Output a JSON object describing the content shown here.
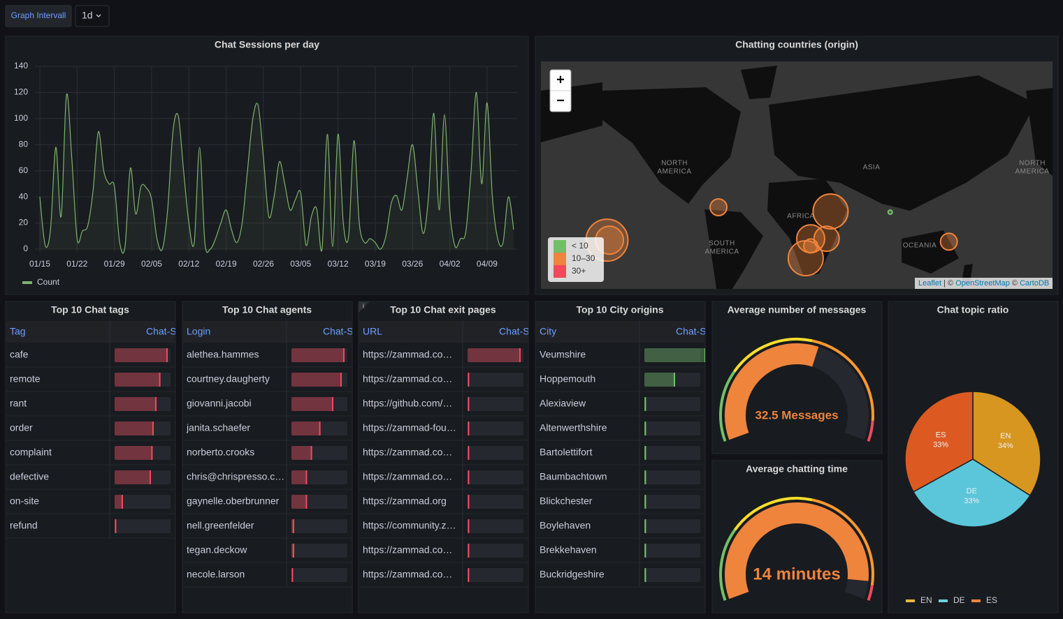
{
  "toolbar": {
    "label": "Graph Intervall",
    "interval": "1d"
  },
  "chart_data": [
    {
      "type": "line",
      "title": "Chat Sessions per day",
      "categories": [
        "01/15",
        null,
        null,
        null,
        null,
        null,
        null,
        "01/22",
        null,
        null,
        null,
        null,
        null,
        null,
        "01/29",
        null,
        null,
        null,
        null,
        null,
        null,
        "02/05",
        null,
        null,
        null,
        null,
        null,
        null,
        "02/12",
        null,
        null,
        null,
        null,
        null,
        null,
        "02/19",
        null,
        null,
        null,
        null,
        null,
        null,
        "02/26",
        null,
        null,
        null,
        null,
        null,
        null,
        "03/05",
        null,
        null,
        null,
        null,
        null,
        null,
        "03/12",
        null,
        null,
        null,
        null,
        null,
        null,
        "03/19",
        null,
        null,
        null,
        null,
        null,
        null,
        "03/26",
        null,
        null,
        null,
        null,
        null,
        null,
        "04/02",
        null,
        null,
        null,
        null,
        null,
        null,
        "04/09",
        null,
        null,
        null,
        null,
        null
      ],
      "series": [
        {
          "name": "Count",
          "color": "#7eb26d",
          "values": [
            40,
            3,
            15,
            78,
            25,
            118,
            70,
            8,
            14,
            18,
            45,
            90,
            60,
            50,
            48,
            5,
            2,
            62,
            27,
            48,
            47,
            38,
            8,
            0,
            30,
            90,
            102,
            60,
            20,
            5,
            78,
            5,
            0,
            8,
            20,
            30,
            15,
            5,
            20,
            60,
            100,
            110,
            70,
            25,
            40,
            67,
            50,
            30,
            38,
            43,
            3,
            25,
            31,
            0,
            88,
            2,
            88,
            20,
            10,
            83,
            20,
            5,
            8,
            5,
            0,
            10,
            35,
            41,
            30,
            55,
            80,
            45,
            12,
            40,
            104,
            30,
            103,
            30,
            2,
            8,
            13,
            60,
            120,
            50,
            112,
            40,
            8,
            5,
            40,
            15
          ]
        }
      ],
      "ylim": [
        0,
        140
      ],
      "yticks": [
        0,
        20,
        40,
        60,
        80,
        100,
        120,
        140
      ],
      "grid": true,
      "legend": "bottom-left"
    },
    {
      "type": "gauge",
      "title": "Average number of messages",
      "value": 32.5,
      "value_label": "32.5 Messages",
      "min": 0,
      "max": 56,
      "color": "#ef843c",
      "thresholds": [
        {
          "value": 0,
          "color": "#73bf69"
        },
        {
          "value": 14,
          "color": "#fade2a"
        },
        {
          "value": 31,
          "color": "#ff9830"
        },
        {
          "value": 52,
          "color": "#f2495c"
        }
      ]
    },
    {
      "type": "gauge",
      "title": "Average chatting time",
      "value": 14,
      "value_label": "14 minutes",
      "min": 0,
      "max": 15,
      "color": "#ef843c",
      "thresholds": [
        {
          "value": 0,
          "color": "#73bf69"
        },
        {
          "value": 3.8,
          "color": "#fade2a"
        },
        {
          "value": 8.3,
          "color": "#ff9830"
        },
        {
          "value": 14.2,
          "color": "#f2495c"
        }
      ]
    },
    {
      "type": "pie",
      "title": "Chat topic ratio",
      "categories": [
        "EN",
        "DE",
        "ES"
      ],
      "values": [
        34,
        33,
        33
      ],
      "value_labels": [
        "34%",
        "33%",
        "33%"
      ],
      "colors": [
        "#d6961f",
        "#5bc6d9",
        "#dc5a22"
      ],
      "legend_colors": [
        "#eab839",
        "#6ed0e0",
        "#ef843c"
      ],
      "legend": "bottom"
    }
  ],
  "map": {
    "title": "Chatting countries (origin)",
    "zoom_in": "+",
    "zoom_out": "−",
    "regions": [
      [
        "NORTH",
        "AMERICA"
      ],
      [
        "SOUTH",
        "AMERICA"
      ],
      [
        "AFRICA"
      ],
      [
        "ASIA"
      ],
      [
        "OCEANIA"
      ],
      [
        "NORTH",
        "AMERICA"
      ]
    ],
    "legend": [
      {
        "label": "< 10",
        "color": "#73bf69"
      },
      {
        "label": "10–30",
        "color": "#ef843c"
      },
      {
        "label": "30+",
        "color": "#f2495c"
      }
    ],
    "thresholds": [
      10,
      30
    ],
    "markers": [
      {
        "lat": 14.6,
        "lon": -65.8,
        "value": 12
      },
      {
        "lat": -18.1,
        "lon": -178,
        "value": 30
      },
      {
        "lat": -18.1,
        "lon": -175.5,
        "value": 20
      },
      {
        "lat": -19.5,
        "lon": 166,
        "value": 12
      },
      {
        "lat": 10.5,
        "lon": 47,
        "value": 25
      },
      {
        "lat": -16.7,
        "lon": 27,
        "value": 20
      },
      {
        "lat": -16.7,
        "lon": 43,
        "value": 18
      },
      {
        "lat": -23.5,
        "lon": 27,
        "value": 10
      },
      {
        "lat": -34.3,
        "lon": 22,
        "value": 25
      },
      {
        "lat": 9.8,
        "lon": 107,
        "value": 3
      }
    ],
    "attribution": [
      "Leaflet",
      "| ©",
      "OpenStreetMap",
      "©",
      "CartoDB"
    ]
  },
  "tables": [
    {
      "title": "Top 10 Chat tags",
      "columns": [
        "Tag",
        "Chat-S"
      ],
      "color": "#f2495c",
      "max": 100,
      "rows": [
        "cafe",
        "remote",
        "rant",
        "order",
        "complaint",
        "defective",
        "on-site",
        "refund"
      ],
      "values": [
        95,
        82,
        75,
        70,
        68,
        65,
        15,
        3
      ]
    },
    {
      "title": "Top 10 Chat agents",
      "columns": [
        "Login",
        "Chat-S"
      ],
      "color": "#f2495c",
      "max": 100,
      "rows": [
        "alethea.hammes",
        "courtney.daugherty",
        "giovanni.jacobi",
        "janita.schaefer",
        "norberto.crooks",
        "chris@chrispresso.c…",
        "gaynelle.oberbrunner",
        "nell.greenfelder",
        "tegan.deckow",
        "necole.larson"
      ],
      "values": [
        95,
        90,
        75,
        52,
        37,
        28,
        28,
        5,
        5,
        3
      ]
    },
    {
      "title": "Top 10 Chat exit pages",
      "columns": [
        "URL",
        "Chat-S"
      ],
      "color": "#f2495c",
      "max": 100,
      "rows": [
        "https://zammad.co…",
        "https://zammad.co…",
        "https://github.com/…",
        "https://zammad-fou…",
        "https://zammad.co…",
        "https://zammad.co…",
        "https://zammad.org",
        "https://community.z…",
        "https://zammad.co…",
        "https://zammad.co…"
      ],
      "values": [
        95,
        3,
        3,
        3,
        3,
        3,
        3,
        3,
        3,
        3
      ]
    },
    {
      "title": "Top 10 City origins",
      "columns": [
        "City",
        "Chat-S"
      ],
      "color": "#73bf69",
      "max": 100,
      "rows": [
        "Veumshire",
        "Hoppemouth",
        "Alexiaview",
        "Altenwerthshire",
        "Bartolettifort",
        "Baumbachtown",
        "Blickchester",
        "Boylehaven",
        "Brekkehaven",
        "Buckridgeshire"
      ],
      "values": [
        110,
        55,
        3,
        3,
        3,
        3,
        3,
        3,
        3,
        3
      ]
    }
  ]
}
